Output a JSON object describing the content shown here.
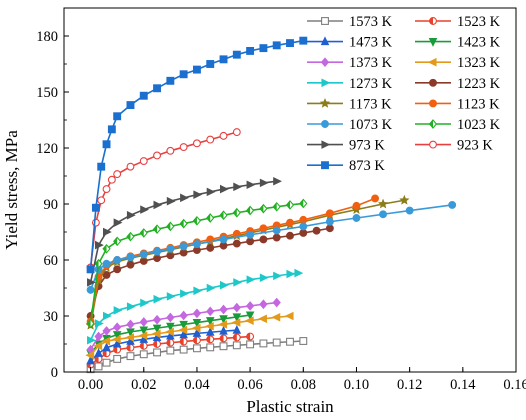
{
  "chart_data": {
    "type": "line",
    "xlabel": "Plastic strain",
    "ylabel": "Yield stress, MPa",
    "xlim": [
      -0.01,
      0.16
    ],
    "ylim": [
      0,
      195
    ],
    "xticks": [
      0.0,
      0.02,
      0.04,
      0.06,
      0.08,
      0.1,
      0.12,
      0.14,
      0.16
    ],
    "xtick_labels": [
      "0.00",
      "0.02",
      "0.04",
      "0.06",
      "0.08",
      "0.10",
      "0.12",
      "0.14",
      "0.16"
    ],
    "yticks": [
      0,
      30,
      60,
      90,
      120,
      150,
      180
    ],
    "ytick_labels": [
      "0",
      "30",
      "60",
      "90",
      "120",
      "150",
      "180"
    ],
    "grid": false,
    "legend_position": "top-right",
    "series": [
      {
        "name": "1573 K",
        "color": "#7f7f7f",
        "marker": "square-open",
        "x": [
          0.0,
          0.003,
          0.006,
          0.01,
          0.015,
          0.02,
          0.025,
          0.03,
          0.035,
          0.04,
          0.045,
          0.05,
          0.055,
          0.06,
          0.065,
          0.07,
          0.075,
          0.08
        ],
        "y": [
          1.5,
          3,
          5,
          7,
          8.5,
          9.5,
          10.5,
          11.5,
          12,
          12.7,
          13.2,
          13.8,
          14.3,
          14.8,
          15.3,
          15.8,
          16.2,
          16.6
        ]
      },
      {
        "name": "1523 K",
        "color": "#e8412c",
        "marker": "circle-half",
        "x": [
          0.0,
          0.003,
          0.006,
          0.01,
          0.015,
          0.02,
          0.025,
          0.03,
          0.035,
          0.04,
          0.045,
          0.05,
          0.055,
          0.06
        ],
        "y": [
          4,
          7,
          10,
          12,
          13,
          14,
          15,
          15.7,
          16.3,
          17,
          17.5,
          18,
          18.5,
          19
        ]
      },
      {
        "name": "1473 K",
        "color": "#1f5fd0",
        "marker": "triangle",
        "x": [
          0.0,
          0.003,
          0.006,
          0.01,
          0.015,
          0.02,
          0.025,
          0.03,
          0.035,
          0.04,
          0.045,
          0.05,
          0.055
        ],
        "y": [
          6,
          10,
          13,
          15,
          16.5,
          17.5,
          18.5,
          19.3,
          20,
          20.7,
          21.3,
          21.9,
          22.4
        ]
      },
      {
        "name": "1423 K",
        "color": "#1a9b3a",
        "marker": "triangle-down",
        "x": [
          0.0,
          0.003,
          0.006,
          0.01,
          0.015,
          0.02,
          0.025,
          0.03,
          0.035,
          0.04,
          0.045,
          0.05,
          0.055,
          0.06
        ],
        "y": [
          10,
          15,
          18,
          20,
          21.5,
          22.5,
          23.5,
          24.5,
          25.5,
          26.5,
          27.5,
          28.5,
          29.5,
          30.5
        ]
      },
      {
        "name": "1373 K",
        "color": "#c467e0",
        "marker": "diamond",
        "x": [
          0.0,
          0.003,
          0.006,
          0.01,
          0.015,
          0.02,
          0.025,
          0.03,
          0.035,
          0.04,
          0.045,
          0.05,
          0.055,
          0.06,
          0.065,
          0.07
        ],
        "y": [
          12,
          19,
          22,
          24,
          25.5,
          26.8,
          28,
          29.2,
          30.3,
          31.4,
          32.5,
          33.5,
          34.5,
          35.4,
          36.3,
          37.2
        ]
      },
      {
        "name": "1323 K",
        "color": "#e39a1a",
        "marker": "triangle-left",
        "x": [
          0.0,
          0.003,
          0.006,
          0.01,
          0.015,
          0.02,
          0.025,
          0.03,
          0.035,
          0.04,
          0.045,
          0.05,
          0.055,
          0.06,
          0.065,
          0.07,
          0.075
        ],
        "y": [
          9,
          14,
          16.5,
          17.5,
          18.5,
          19.5,
          20.5,
          21.5,
          22.5,
          23.5,
          24.5,
          25.5,
          26.5,
          27.5,
          28.5,
          29.3,
          30
        ]
      },
      {
        "name": "1273 K",
        "color": "#1ec8c8",
        "marker": "triangle-right",
        "x": [
          0.0,
          0.003,
          0.006,
          0.01,
          0.015,
          0.02,
          0.025,
          0.03,
          0.035,
          0.04,
          0.045,
          0.05,
          0.055,
          0.06,
          0.065,
          0.07,
          0.075,
          0.078
        ],
        "y": [
          17,
          26,
          30,
          33,
          35,
          37,
          39,
          40.5,
          42,
          43.5,
          45,
          46.5,
          48,
          49.5,
          50.5,
          51.5,
          52.5,
          53
        ]
      },
      {
        "name": "1223 K",
        "color": "#8b3a2a",
        "marker": "circle",
        "x": [
          0.0,
          0.003,
          0.006,
          0.01,
          0.015,
          0.02,
          0.025,
          0.03,
          0.035,
          0.04,
          0.045,
          0.05,
          0.055,
          0.06,
          0.065,
          0.07,
          0.075,
          0.08,
          0.085,
          0.09
        ],
        "y": [
          30,
          46,
          52,
          55,
          57.5,
          59.5,
          61,
          62.5,
          64,
          65.3,
          66.5,
          67.7,
          68.8,
          70,
          71,
          72,
          73,
          74.5,
          75.7,
          77
        ]
      },
      {
        "name": "1173 K",
        "color": "#8a7d1a",
        "marker": "star",
        "x": [
          0.0,
          0.003,
          0.006,
          0.01,
          0.015,
          0.02,
          0.025,
          0.03,
          0.035,
          0.04,
          0.045,
          0.05,
          0.055,
          0.06,
          0.065,
          0.07,
          0.075,
          0.08,
          0.09,
          0.1,
          0.11,
          0.118
        ],
        "y": [
          25,
          49,
          56,
          59,
          61,
          62.5,
          64,
          65.5,
          67,
          68.5,
          70,
          71.5,
          73,
          74.5,
          76,
          77.5,
          79,
          80.5,
          84,
          87,
          90,
          92
        ]
      },
      {
        "name": "1123 K",
        "color": "#f06010",
        "marker": "circle",
        "x": [
          0.0,
          0.003,
          0.006,
          0.01,
          0.015,
          0.02,
          0.025,
          0.03,
          0.035,
          0.04,
          0.045,
          0.05,
          0.055,
          0.06,
          0.065,
          0.07,
          0.075,
          0.08,
          0.09,
          0.1,
          0.107
        ],
        "y": [
          27,
          51,
          57,
          60,
          62,
          63.5,
          65,
          66.5,
          68,
          69.5,
          71,
          72.5,
          74,
          75.5,
          77,
          78.5,
          80,
          81.5,
          85,
          89,
          93
        ]
      },
      {
        "name": "1073 K",
        "color": "#3a9ad8",
        "marker": "circle",
        "x": [
          0.0,
          0.003,
          0.006,
          0.01,
          0.015,
          0.02,
          0.025,
          0.03,
          0.035,
          0.04,
          0.05,
          0.06,
          0.07,
          0.08,
          0.09,
          0.1,
          0.11,
          0.12,
          0.136
        ],
        "y": [
          44,
          55,
          58,
          60,
          61.5,
          63,
          64.5,
          66,
          67.3,
          68.5,
          71,
          73.5,
          75.8,
          78,
          80.5,
          82.5,
          84.5,
          86.5,
          89.5
        ]
      },
      {
        "name": "1023 K",
        "color": "#22b022",
        "marker": "diamond-half",
        "x": [
          0.0,
          0.003,
          0.006,
          0.01,
          0.015,
          0.02,
          0.025,
          0.03,
          0.035,
          0.04,
          0.045,
          0.05,
          0.055,
          0.06,
          0.065,
          0.07,
          0.075,
          0.08
        ],
        "y": [
          26,
          58,
          66,
          70,
          72.5,
          74.5,
          76.5,
          78,
          79.5,
          81,
          82.5,
          84,
          85.3,
          86.5,
          87.5,
          88.5,
          89.5,
          90.3
        ]
      },
      {
        "name": "973 K",
        "color": "#505050",
        "marker": "triangle-right",
        "x": [
          0.0,
          0.003,
          0.006,
          0.01,
          0.015,
          0.02,
          0.025,
          0.03,
          0.035,
          0.04,
          0.045,
          0.05,
          0.055,
          0.06,
          0.065,
          0.07
        ],
        "y": [
          48,
          68,
          75,
          80,
          84,
          87,
          89.5,
          91.5,
          93.3,
          95,
          96.5,
          98,
          99.2,
          100.3,
          101.3,
          102.2
        ]
      },
      {
        "name": "923 K",
        "color": "#e84040",
        "marker": "circle-open",
        "x": [
          0.0,
          0.002,
          0.004,
          0.006,
          0.008,
          0.01,
          0.015,
          0.02,
          0.025,
          0.03,
          0.035,
          0.04,
          0.045,
          0.05,
          0.055
        ],
        "y": [
          56,
          80,
          92,
          98,
          103,
          106,
          110,
          113,
          116,
          118.5,
          120.5,
          122.5,
          124.5,
          126.5,
          128.5
        ]
      },
      {
        "name": "873 K",
        "color": "#1a6fcf",
        "marker": "square",
        "x": [
          0.0,
          0.002,
          0.004,
          0.006,
          0.008,
          0.01,
          0.015,
          0.02,
          0.025,
          0.03,
          0.035,
          0.04,
          0.045,
          0.05,
          0.055,
          0.06,
          0.065,
          0.07,
          0.075,
          0.08
        ],
        "y": [
          55,
          88,
          110,
          122,
          130,
          137,
          143,
          148,
          152,
          156,
          159.5,
          162,
          165,
          167.5,
          170,
          172,
          173.5,
          175,
          176.2,
          177.5
        ]
      }
    ]
  }
}
